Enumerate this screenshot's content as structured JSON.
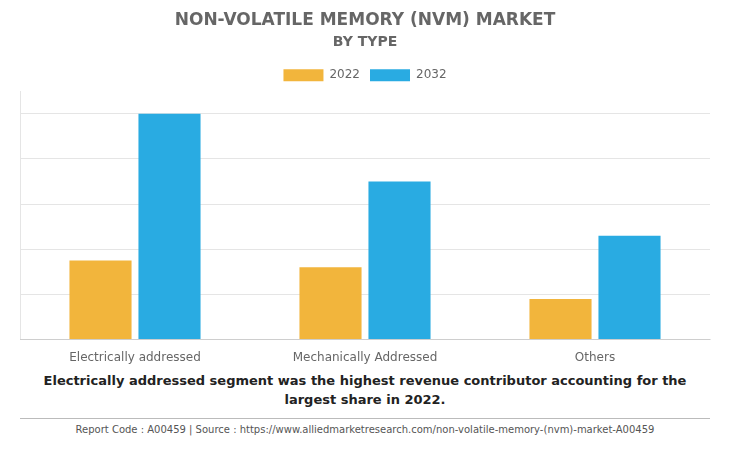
{
  "chart_data": {
    "type": "bar",
    "title": "NON-VOLATILE MEMORY (NVM) MARKET",
    "subtitle": "BY TYPE",
    "categories": [
      "Electrically addressed",
      "Mechanically Addressed",
      "Others"
    ],
    "series": [
      {
        "name": "2022",
        "color": "#F2B53C",
        "values": [
          35,
          32,
          18
        ]
      },
      {
        "name": "2032",
        "color": "#29ABE2",
        "values": [
          100,
          70,
          46
        ]
      }
    ],
    "ylim": [
      0,
      110
    ],
    "yticks": [
      0,
      20,
      40,
      60,
      80,
      100
    ],
    "grid": true,
    "legend": "top",
    "tick_labels": "x",
    "annotations": [
      "Electrically addressed segment was the highest revenue contributor accounting for the\nlargest share in 2022.",
      "Report Code : A00459  |  Source : https://www.alliedmarketresearch.com/non-volatile-memory-(nvm)-market-A00459"
    ]
  }
}
